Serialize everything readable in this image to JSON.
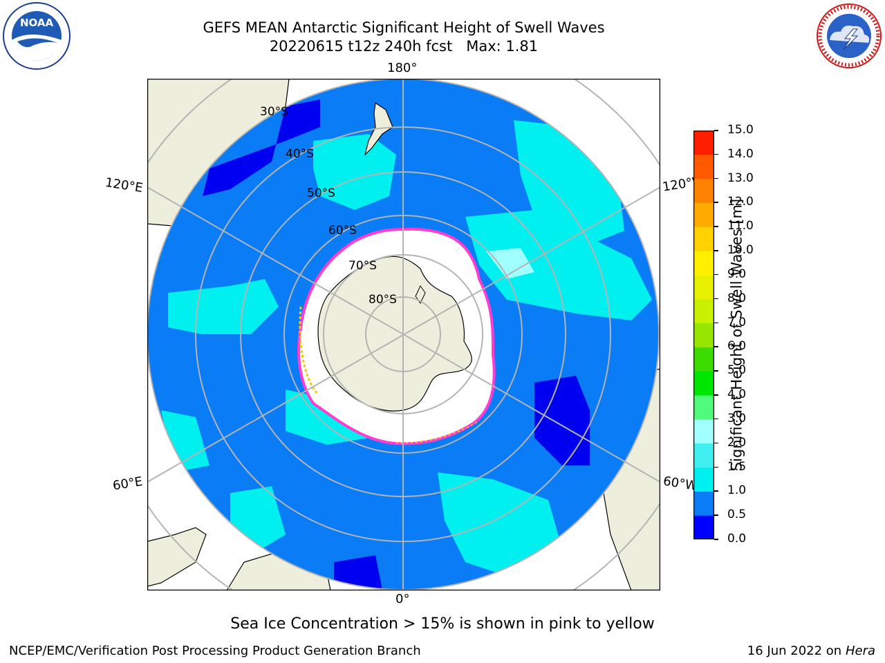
{
  "title": {
    "line1": "GEFS MEAN Antarctic Significant Height of Swell Waves",
    "line2": "20220615 t12z 240h fcst   Max: 1.81"
  },
  "logos": {
    "left": {
      "icon": "noaa-logo",
      "text": "NOAA",
      "ring_text": "NATIONAL OCEANIC AND ATMOSPHERIC ADMINISTRATION · U.S. DEPARTMENT OF COMMERCE"
    },
    "right": {
      "icon": "national-weather-service-logo",
      "ring_text": "NATIONAL WEATHER SERVICE"
    }
  },
  "map": {
    "projection": "south-polar-stereographic",
    "longitude_labels": {
      "top": "180°",
      "bottom": "0°",
      "upper_left": "120°E",
      "upper_right": "120°W",
      "lower_left": "60°E",
      "lower_right": "60°W"
    },
    "latitude_labels": [
      "30°S",
      "40°S",
      "50°S",
      "60°S",
      "70°S",
      "80°S"
    ],
    "colors": {
      "land": "#eeeedc",
      "ocean_base": "#0a7cf5",
      "low_swell": "#0000f0",
      "mid_swell": "#00f0f0",
      "sea_ice": "#ffffff",
      "ice_edge_pink": "#ff3cd2",
      "ice_edge_yellow": "#f5c800",
      "grid": "#b4b4b4"
    }
  },
  "colorbar": {
    "label": "Significant Height of Swell Waves [m]",
    "ticks": [
      "0.0",
      "0.5",
      "1.0",
      "1.5",
      "2.0",
      "3.0",
      "4.0",
      "5.0",
      "6.0",
      "7.0",
      "8.0",
      "9.0",
      "10.0",
      "11.0",
      "12.0",
      "13.0",
      "14.0",
      "15.0"
    ],
    "colors": [
      "#0000ff",
      "#0a7cf5",
      "#00f0f0",
      "#40f0f0",
      "#a0ffff",
      "#50fa7a",
      "#00e600",
      "#3cdc00",
      "#96e600",
      "#c8f000",
      "#e6f000",
      "#fff000",
      "#ffd200",
      "#ffaa00",
      "#ff8200",
      "#ff5a00",
      "#ff1e00"
    ]
  },
  "footer": {
    "ice_note": "Sea Ice Concentration > 15% is shown in pink to yellow",
    "left": "NCEP/EMC/Verification Post Processing Product Generation Branch",
    "right_date": "16 Jun 2022 on",
    "right_machine": "Hera"
  }
}
